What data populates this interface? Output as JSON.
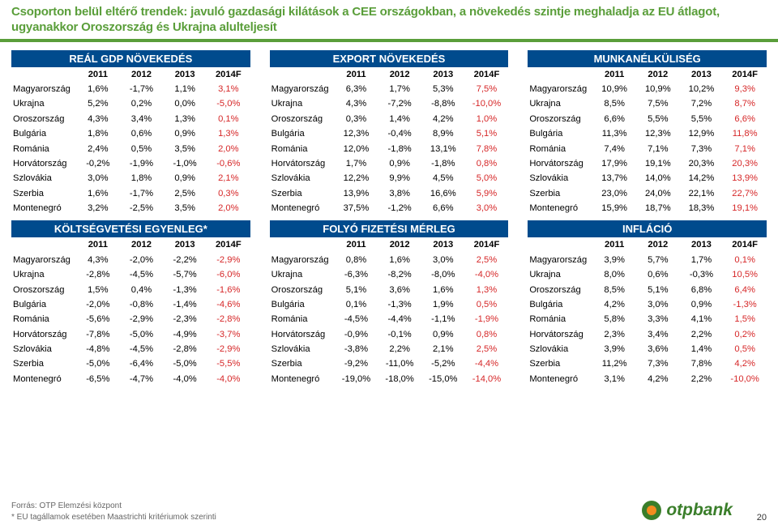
{
  "title": "Csoporton belül eltérő trendek: javuló gazdasági kilátások a CEE országokban, a növekedés szintje meghaladja az EU átlagot, ugyanakkor Oroszország és Ukrajna alulteljesít",
  "colors": {
    "headerBg": "#004B8D",
    "ruleGreen": "#5a9e3a",
    "forecast": "#D62728",
    "logoGreen": "#3a7e2a",
    "logoOrange": "#F28C1F"
  },
  "years": [
    "2011",
    "2012",
    "2013",
    "2014F"
  ],
  "countries": [
    "Magyarország",
    "Ukrajna",
    "Oroszország",
    "Bulgária",
    "Románia",
    "Horvátország",
    "Szlovákia",
    "Szerbia",
    "Montenegró"
  ],
  "panels": [
    {
      "title": "REÁL GDP NÖVEKEDÉS",
      "rows": [
        [
          "1,6%",
          "-1,7%",
          "1,1%",
          "3,1%"
        ],
        [
          "5,2%",
          "0,2%",
          "0,0%",
          "-5,0%"
        ],
        [
          "4,3%",
          "3,4%",
          "1,3%",
          "0,1%"
        ],
        [
          "1,8%",
          "0,6%",
          "0,9%",
          "1,3%"
        ],
        [
          "2,4%",
          "0,5%",
          "3,5%",
          "2,0%"
        ],
        [
          "-0,2%",
          "-1,9%",
          "-1,0%",
          "-0,6%"
        ],
        [
          "3,0%",
          "1,8%",
          "0,9%",
          "2,1%"
        ],
        [
          "1,6%",
          "-1,7%",
          "2,5%",
          "0,3%"
        ],
        [
          "3,2%",
          "-2,5%",
          "3,5%",
          "2,0%"
        ]
      ]
    },
    {
      "title": "EXPORT NÖVEKEDÉS",
      "rows": [
        [
          "6,3%",
          "1,7%",
          "5,3%",
          "7,5%"
        ],
        [
          "4,3%",
          "-7,2%",
          "-8,8%",
          "-10,0%"
        ],
        [
          "0,3%",
          "1,4%",
          "4,2%",
          "1,0%"
        ],
        [
          "12,3%",
          "-0,4%",
          "8,9%",
          "5,1%"
        ],
        [
          "12,0%",
          "-1,8%",
          "13,1%",
          "7,8%"
        ],
        [
          "1,7%",
          "0,9%",
          "-1,8%",
          "0,8%"
        ],
        [
          "12,2%",
          "9,9%",
          "4,5%",
          "5,0%"
        ],
        [
          "13,9%",
          "3,8%",
          "16,6%",
          "5,9%"
        ],
        [
          "37,5%",
          "-1,2%",
          "6,6%",
          "3,0%"
        ]
      ]
    },
    {
      "title": "MUNKANÉLKÜLISÉG",
      "rows": [
        [
          "10,9%",
          "10,9%",
          "10,2%",
          "9,3%"
        ],
        [
          "8,5%",
          "7,5%",
          "7,2%",
          "8,7%"
        ],
        [
          "6,6%",
          "5,5%",
          "5,5%",
          "6,6%"
        ],
        [
          "11,3%",
          "12,3%",
          "12,9%",
          "11,8%"
        ],
        [
          "7,4%",
          "7,1%",
          "7,3%",
          "7,1%"
        ],
        [
          "17,9%",
          "19,1%",
          "20,3%",
          "20,3%"
        ],
        [
          "13,7%",
          "14,0%",
          "14,2%",
          "13,9%"
        ],
        [
          "23,0%",
          "24,0%",
          "22,1%",
          "22,7%"
        ],
        [
          "15,9%",
          "18,7%",
          "18,3%",
          "19,1%"
        ]
      ]
    },
    {
      "title": "KÖLTSÉGVETÉSI EGYENLEG*",
      "rows": [
        [
          "4,3%",
          "-2,0%",
          "-2,2%",
          "-2,9%"
        ],
        [
          "-2,8%",
          "-4,5%",
          "-5,7%",
          "-6,0%"
        ],
        [
          "1,5%",
          "0,4%",
          "-1,3%",
          "-1,6%"
        ],
        [
          "-2,0%",
          "-0,8%",
          "-1,4%",
          "-4,6%"
        ],
        [
          "-5,6%",
          "-2,9%",
          "-2,3%",
          "-2,8%"
        ],
        [
          "-7,8%",
          "-5,0%",
          "-4,9%",
          "-3,7%"
        ],
        [
          "-4,8%",
          "-4,5%",
          "-2,8%",
          "-2,9%"
        ],
        [
          "-5,0%",
          "-6,4%",
          "-5,0%",
          "-5,5%"
        ],
        [
          "-6,5%",
          "-4,7%",
          "-4,0%",
          "-4,0%"
        ]
      ]
    },
    {
      "title": "FOLYÓ FIZETÉSI MÉRLEG",
      "rows": [
        [
          "0,8%",
          "1,6%",
          "3,0%",
          "2,5%"
        ],
        [
          "-6,3%",
          "-8,2%",
          "-8,0%",
          "-4,0%"
        ],
        [
          "5,1%",
          "3,6%",
          "1,6%",
          "1,3%"
        ],
        [
          "0,1%",
          "-1,3%",
          "1,9%",
          "0,5%"
        ],
        [
          "-4,5%",
          "-4,4%",
          "-1,1%",
          "-1,9%"
        ],
        [
          "-0,9%",
          "-0,1%",
          "0,9%",
          "0,8%"
        ],
        [
          "-3,8%",
          "2,2%",
          "2,1%",
          "2,5%"
        ],
        [
          "-9,2%",
          "-11,0%",
          "-5,2%",
          "-4,4%"
        ],
        [
          "-19,0%",
          "-18,0%",
          "-15,0%",
          "-14,0%"
        ]
      ]
    },
    {
      "title": "INFLÁCIÓ",
      "rows": [
        [
          "3,9%",
          "5,7%",
          "1,7%",
          "0,1%"
        ],
        [
          "8,0%",
          "0,6%",
          "-0,3%",
          "10,5%"
        ],
        [
          "8,5%",
          "5,1%",
          "6,8%",
          "6,4%"
        ],
        [
          "4,2%",
          "3,0%",
          "0,9%",
          "-1,3%"
        ],
        [
          "5,8%",
          "3,3%",
          "4,1%",
          "1,5%"
        ],
        [
          "2,3%",
          "3,4%",
          "2,2%",
          "0,2%"
        ],
        [
          "3,9%",
          "3,6%",
          "1,4%",
          "0,5%"
        ],
        [
          "11,2%",
          "7,3%",
          "7,8%",
          "4,2%"
        ],
        [
          "3,1%",
          "4,2%",
          "2,2%",
          "-10,0%"
        ]
      ]
    }
  ],
  "source": "Forrás: OTP Elemzési központ",
  "footnote": "* EU tagállamok esetében Maastrichti kritériumok szerinti",
  "logo_text": "otpbank",
  "page_number": "20"
}
